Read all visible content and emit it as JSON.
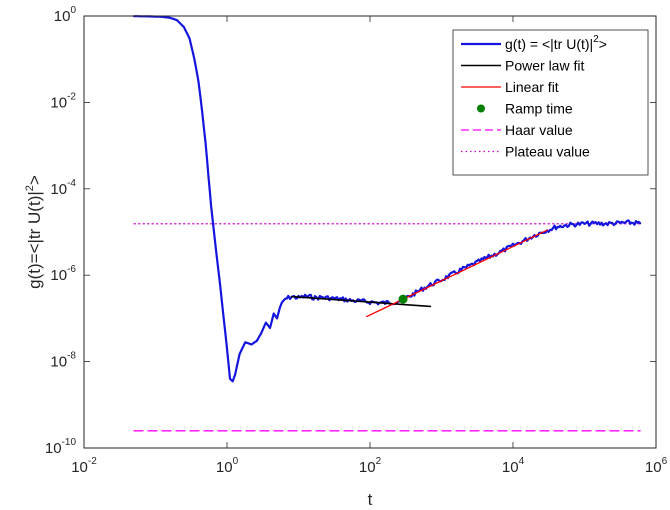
{
  "chart_data": {
    "type": "line",
    "xscale": "log",
    "yscale": "log",
    "xlim": [
      0.01,
      1000000
    ],
    "ylim": [
      1e-10,
      1
    ],
    "xlabel": "t",
    "ylabel_text": "g(t)=<|tr U(t)|",
    "ylabel_sup": "2",
    "ylabel_end": ">",
    "grid": false,
    "legend_position": "top-right",
    "x_ticks": [
      {
        "value": 0.01,
        "base": "10",
        "exp": "-2"
      },
      {
        "value": 1,
        "base": "10",
        "exp": "0"
      },
      {
        "value": 100,
        "base": "10",
        "exp": "2"
      },
      {
        "value": 10000,
        "base": "10",
        "exp": "4"
      },
      {
        "value": 1000000,
        "base": "10",
        "exp": "6"
      }
    ],
    "y_ticks": [
      {
        "value": 1e-10,
        "base": "10",
        "exp": "-10"
      },
      {
        "value": 1e-08,
        "base": "10",
        "exp": "-8"
      },
      {
        "value": 1e-06,
        "base": "10",
        "exp": "-6"
      },
      {
        "value": 0.0001,
        "base": "10",
        "exp": "-4"
      },
      {
        "value": 0.01,
        "base": "10",
        "exp": "-2"
      },
      {
        "value": 1,
        "base": "10",
        "exp": "0"
      }
    ],
    "legend": [
      {
        "key": "g",
        "text": "g(t) = <|tr U(t)|",
        "sup": "2",
        "tail": ">"
      },
      {
        "key": "power",
        "text": "Power law fit"
      },
      {
        "key": "linear",
        "text": "Linear fit"
      },
      {
        "key": "ramp",
        "text": "Ramp time"
      },
      {
        "key": "haar",
        "text": "Haar value"
      },
      {
        "key": "plateau",
        "text": "Plateau value"
      }
    ],
    "series": [
      {
        "key": "g",
        "color": "#1515e0",
        "points": [
          [
            0.05,
            0.99
          ],
          [
            0.08,
            0.98
          ],
          [
            0.12,
            0.96
          ],
          [
            0.16,
            0.91
          ],
          [
            0.2,
            0.8
          ],
          [
            0.25,
            0.55
          ],
          [
            0.3,
            0.3
          ],
          [
            0.35,
            0.1
          ],
          [
            0.4,
            0.03
          ],
          [
            0.45,
            0.006
          ],
          [
            0.5,
            0.0012
          ],
          [
            0.55,
            0.0002
          ],
          [
            0.6,
            4e-05
          ],
          [
            0.7,
            4e-06
          ],
          [
            0.8,
            6e-07
          ],
          [
            0.9,
            1e-07
          ],
          [
            1.0,
            2e-08
          ],
          [
            1.1,
            4e-09
          ],
          [
            1.2,
            3.5e-09
          ],
          [
            1.3,
            5e-09
          ],
          [
            1.5,
            1.5e-08
          ],
          [
            1.8,
            2.8e-08
          ],
          [
            2.2,
            2.5e-08
          ],
          [
            2.6,
            3e-08
          ],
          [
            3.0,
            4.5e-08
          ],
          [
            3.5,
            8e-08
          ],
          [
            4.0,
            6e-08
          ],
          [
            4.5,
            1.3e-07
          ],
          [
            5.0,
            1e-07
          ],
          [
            5.5,
            1.8e-07
          ],
          [
            6.5,
            2.8e-07
          ],
          [
            8,
            3.2e-07
          ],
          [
            10,
            3e-07
          ],
          [
            13,
            3.3e-07
          ],
          [
            17,
            3e-07
          ],
          [
            22,
            3.1e-07
          ],
          [
            30,
            2.9e-07
          ],
          [
            40,
            2.8e-07
          ],
          [
            55,
            2.6e-07
          ],
          [
            75,
            2.5e-07
          ],
          [
            100,
            2.4e-07
          ],
          [
            130,
            2.3e-07
          ],
          [
            170,
            2.3e-07
          ],
          [
            220,
            2.4e-07
          ],
          [
            260,
            2.6e-07
          ],
          [
            300,
            2.8e-07
          ],
          [
            350,
            3.2e-07
          ],
          [
            400,
            3.6e-07
          ],
          [
            500,
            4.5e-07
          ],
          [
            700,
            6e-07
          ],
          [
            1000,
            7.8e-07
          ],
          [
            1500,
            1.1e-06
          ],
          [
            2000,
            1.4e-06
          ],
          [
            3000,
            1.9e-06
          ],
          [
            4000,
            2.4e-06
          ],
          [
            5000,
            2.8e-06
          ],
          [
            7000,
            3.6e-06
          ],
          [
            10000,
            4.8e-06
          ],
          [
            15000,
            6.6e-06
          ],
          [
            20000,
            8.4e-06
          ],
          [
            30000,
            1.1e-05
          ],
          [
            40000,
            1.3e-05
          ],
          [
            50000,
            1.4e-05
          ],
          [
            70000,
            1.5e-05
          ],
          [
            100000,
            1.55e-05
          ],
          [
            150000,
            1.58e-05
          ],
          [
            200000,
            1.56e-05
          ],
          [
            300000,
            1.6e-05
          ],
          [
            400000,
            1.65e-05
          ],
          [
            500000,
            1.62e-05
          ],
          [
            600000,
            1.6e-05
          ]
        ]
      },
      {
        "key": "power",
        "color": "#000000",
        "points": [
          [
            8,
            3.2e-07
          ],
          [
            700,
            1.9e-07
          ]
        ]
      },
      {
        "key": "linear",
        "color": "#ff0000",
        "points": [
          [
            90,
            1.1e-07
          ],
          [
            30000,
            1.1e-05
          ]
        ]
      },
      {
        "key": "haar",
        "color": "#ff00ff",
        "points": [
          [
            0.05,
            2.5e-10
          ],
          [
            600000,
            2.5e-10
          ]
        ]
      },
      {
        "key": "plateau",
        "color": "#cc00cc",
        "points": [
          [
            0.05,
            1.55e-05
          ],
          [
            600000,
            1.55e-05
          ]
        ]
      }
    ],
    "ramp_point": {
      "x": 290,
      "y": 2.8e-07,
      "color": "#008000"
    }
  }
}
